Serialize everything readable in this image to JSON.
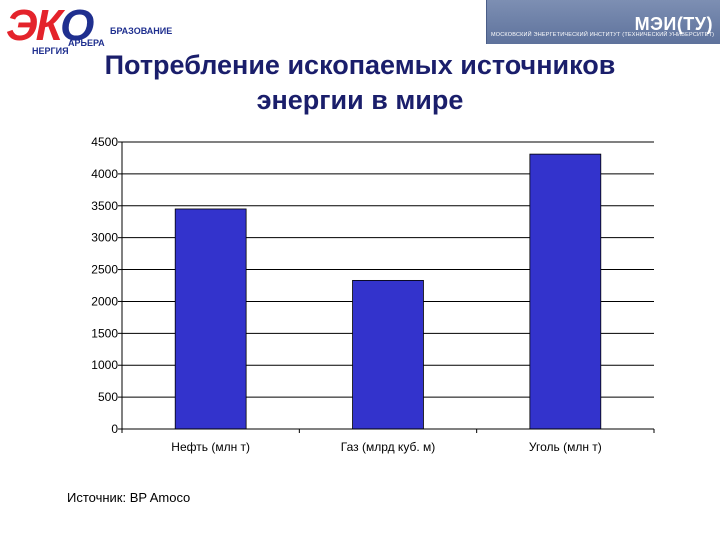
{
  "header": {
    "logo_letters": [
      "Э",
      "К",
      "О"
    ],
    "logo_lines": [
      "БРАЗОВАНИЕ",
      "АРЬЕРА",
      "НЕРГИЯ"
    ],
    "banner_abbr": "МЭИ(ТУ)",
    "banner_sub": "МОСКОВСКИЙ ЭНЕРГЕТИЧЕСКИЙ ИНСТИТУТ (ТЕХНИЧЕСКИЙ УНИВЕРСИТЕТ)"
  },
  "title_lines": [
    "Потребление ископаемых источников",
    "энергии в мире"
  ],
  "source": "Источник:  BP Amoco",
  "colors": {
    "bar": "#3333cc",
    "title": "#1a1e6b",
    "banner": "#6f82aa"
  },
  "chart_data": {
    "type": "bar",
    "title": "Потребление ископаемых источников энергии в мире",
    "categories": [
      "Нефть (млн т)",
      "Газ (млрд куб. м)",
      "Уголь (млн т)"
    ],
    "values": [
      3450,
      2330,
      4310
    ],
    "xlabel": "",
    "ylabel": "",
    "ylim": [
      0,
      4500
    ],
    "yticks": [
      0,
      500,
      1000,
      1500,
      2000,
      2500,
      3000,
      3500,
      4000,
      4500
    ],
    "grid": true,
    "legend": "none"
  }
}
